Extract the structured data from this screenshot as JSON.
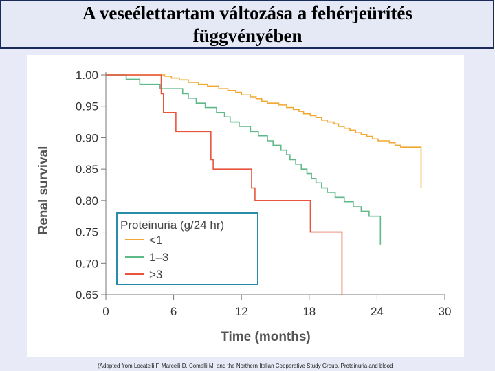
{
  "slide": {
    "title_line1": "A veseélettartam változása a fehérjeürítés",
    "title_line2": "függvényében",
    "footnote": "(Adapted from Locatelli F, Marcelli D, Comelli M, and the Northern Italian Cooperative Study Group. Proteinuria and blood"
  },
  "chart_data": {
    "type": "line",
    "title": "",
    "xlabel": "Time (months)",
    "ylabel": "Renal survival",
    "xlim": [
      0,
      30
    ],
    "ylim": [
      0.65,
      1.0
    ],
    "xticks": [
      0,
      6,
      12,
      18,
      24,
      30
    ],
    "xtick_labels": [
      "0",
      "6",
      "12",
      "18",
      "24",
      "30"
    ],
    "yticks": [
      1.0,
      0.95,
      0.9,
      0.85,
      0.8,
      0.75,
      0.7,
      0.65
    ],
    "ytick_labels": [
      "1.00",
      "0.95",
      "0.90",
      "0.85",
      "0.80",
      "0.75",
      "0.70",
      "0.65"
    ],
    "legend": {
      "title": "Proteinuria (g/24 hr)",
      "position": "lower-left"
    },
    "series": [
      {
        "name": "<1",
        "color": "#f0a830",
        "steps": [
          [
            0,
            1.0
          ],
          [
            5.2,
            0.998
          ],
          [
            5.8,
            0.995
          ],
          [
            6.5,
            0.992
          ],
          [
            7.3,
            0.988
          ],
          [
            8.2,
            0.985
          ],
          [
            9.0,
            0.982
          ],
          [
            10.0,
            0.978
          ],
          [
            10.8,
            0.975
          ],
          [
            11.5,
            0.972
          ],
          [
            12.0,
            0.968
          ],
          [
            12.8,
            0.965
          ],
          [
            13.3,
            0.962
          ],
          [
            13.8,
            0.958
          ],
          [
            14.3,
            0.955
          ],
          [
            15.3,
            0.952
          ],
          [
            16.0,
            0.948
          ],
          [
            16.6,
            0.945
          ],
          [
            17.1,
            0.942
          ],
          [
            17.5,
            0.938
          ],
          [
            18.1,
            0.935
          ],
          [
            18.6,
            0.932
          ],
          [
            19.1,
            0.928
          ],
          [
            19.6,
            0.925
          ],
          [
            20.2,
            0.922
          ],
          [
            20.6,
            0.918
          ],
          [
            21.1,
            0.915
          ],
          [
            21.6,
            0.912
          ],
          [
            22.1,
            0.908
          ],
          [
            22.6,
            0.905
          ],
          [
            23.1,
            0.902
          ],
          [
            23.6,
            0.898
          ],
          [
            24.1,
            0.895
          ],
          [
            25.1,
            0.892
          ],
          [
            25.6,
            0.888
          ],
          [
            26.1,
            0.885
          ],
          [
            27.9,
            0.82
          ]
        ],
        "end": 27.9
      },
      {
        "name": "1–3",
        "color": "#5fb888",
        "steps": [
          [
            0,
            1.0
          ],
          [
            1.8,
            0.993
          ],
          [
            3.0,
            0.985
          ],
          [
            4.8,
            0.978
          ],
          [
            6.8,
            0.97
          ],
          [
            7.3,
            0.963
          ],
          [
            8.0,
            0.955
          ],
          [
            8.8,
            0.948
          ],
          [
            9.8,
            0.94
          ],
          [
            10.5,
            0.933
          ],
          [
            11.0,
            0.925
          ],
          [
            11.8,
            0.918
          ],
          [
            12.8,
            0.91
          ],
          [
            13.5,
            0.903
          ],
          [
            14.3,
            0.895
          ],
          [
            14.8,
            0.888
          ],
          [
            15.5,
            0.88
          ],
          [
            16.0,
            0.873
          ],
          [
            16.3,
            0.865
          ],
          [
            16.8,
            0.858
          ],
          [
            17.3,
            0.85
          ],
          [
            17.8,
            0.843
          ],
          [
            18.2,
            0.835
          ],
          [
            18.6,
            0.828
          ],
          [
            19.1,
            0.82
          ],
          [
            19.6,
            0.813
          ],
          [
            20.3,
            0.805
          ],
          [
            21.1,
            0.798
          ],
          [
            21.9,
            0.79
          ],
          [
            22.6,
            0.783
          ],
          [
            23.3,
            0.775
          ],
          [
            24.3,
            0.73
          ]
        ],
        "end": 24.3
      },
      {
        "name": ">3",
        "color": "#e8553c",
        "steps": [
          [
            0,
            1.0
          ],
          [
            4.9,
            0.97
          ],
          [
            5.1,
            0.94
          ],
          [
            6.2,
            0.91
          ],
          [
            9.3,
            0.865
          ],
          [
            9.5,
            0.85
          ],
          [
            12.9,
            0.82
          ],
          [
            13.2,
            0.8
          ],
          [
            18.1,
            0.75
          ],
          [
            20.9,
            0.65
          ]
        ],
        "end": 20.9
      }
    ]
  }
}
